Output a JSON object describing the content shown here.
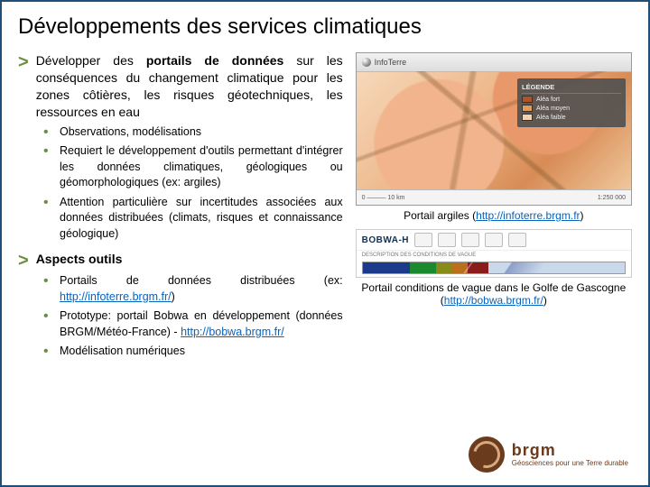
{
  "title": "Développements des services climatiques",
  "colors": {
    "border": "#1f4e79",
    "accent": "#6b8f3f",
    "link": "#0563c1",
    "brand": "#6a3b1c"
  },
  "section1": {
    "lead_before": "Développer des ",
    "lead_bold": "portails de données",
    "lead_after": " sur les conséquences du changement climatique pour les zones côtières, les risques géotechniques, les ressources en eau",
    "bullets": [
      "Observations, modélisations",
      "Requiert le développement d'outils permettant d'intégrer les données climatiques, géologiques ou géomorphologiques (ex: argiles)",
      "Attention particulière sur incertitudes associées aux données distribuées (climats, risques et connaissance géologique)"
    ]
  },
  "section2": {
    "heading": "Aspects outils",
    "b1_pre": "Portails de données distribuées (ex: ",
    "b1_link": "http://infoterre.brgm.fr/",
    "b1_post": ")",
    "b2_pre": "Prototype: portail Bobwa en développement (données BRGM/Météo-France) - ",
    "b2_link": "http://bobwa.brgm.fr/",
    "b3": "Modélisation numériques"
  },
  "fig1": {
    "topbar_name": "InfoTerre",
    "legend_title": "LÉGENDE",
    "legend_items": [
      {
        "label": "Aléa fort",
        "color": "#b35224"
      },
      {
        "label": "Aléa moyen",
        "color": "#e09a5a"
      },
      {
        "label": "Aléa faible",
        "color": "#f3d3ad"
      }
    ],
    "scale_left": "0 ——— 10 km",
    "scale_right": "1:250 000",
    "caption_pre": "Portail argiles (",
    "caption_link": "http://infoterre.brgm.fr",
    "caption_post": ")"
  },
  "fig2": {
    "title": "BOBWA-H",
    "subtitle": "DESCRIPTION DES CONDITIONS DE VAGUE",
    "caption_pre": "Portail conditions de vague dans le Golfe de Gascogne (",
    "caption_link": "http://bobwa.brgm.fr/",
    "caption_post": ")"
  },
  "logo": {
    "name": "brgm",
    "tagline": "Géosciences pour une Terre durable"
  }
}
